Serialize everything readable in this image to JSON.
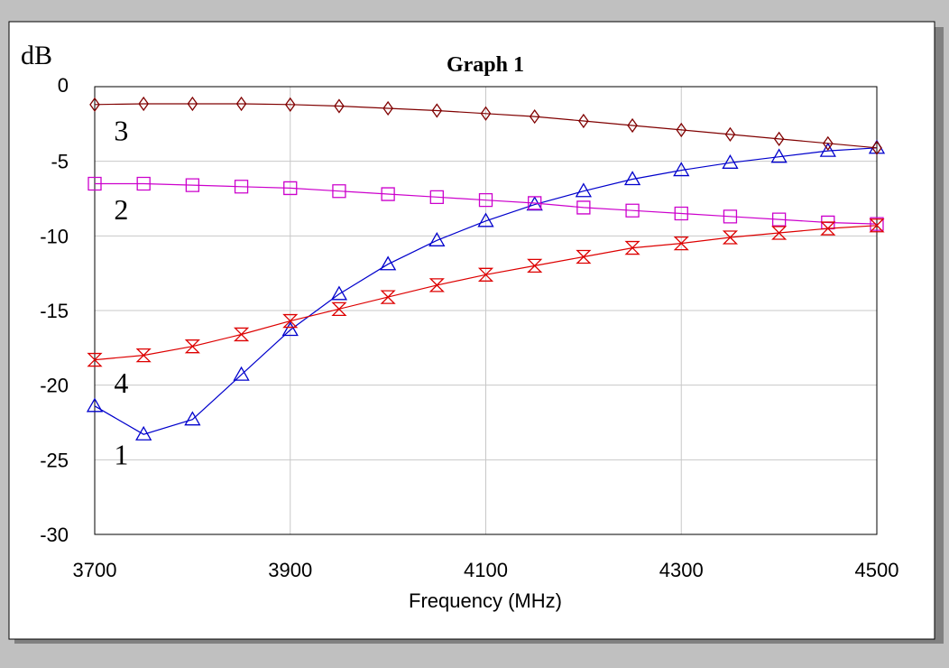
{
  "chart_data": {
    "type": "line",
    "title": "Graph 1",
    "ylabel": "dB",
    "xlabel": "Frequency (MHz)",
    "xlim": [
      3700,
      4500
    ],
    "ylim": [
      -30,
      0
    ],
    "x_ticks": [
      "3700",
      "3900",
      "4100",
      "4300",
      "4500"
    ],
    "y_ticks": [
      "0",
      "-5",
      "-10",
      "-15",
      "-20",
      "-25",
      "-30"
    ],
    "grid": true,
    "x": [
      3700,
      3750,
      3800,
      3850,
      3900,
      3950,
      4000,
      4050,
      4100,
      4150,
      4200,
      4250,
      4300,
      4350,
      4400,
      4450,
      4500
    ],
    "series": [
      {
        "name": "1",
        "color": "#0000cc",
        "marker": "triangle-up",
        "values": [
          -21.4,
          -23.3,
          -22.3,
          -19.3,
          -16.3,
          -13.9,
          -11.9,
          -10.3,
          -9.0,
          -7.9,
          -7.0,
          -6.2,
          -5.6,
          -5.1,
          -4.7,
          -4.3,
          -4.1
        ]
      },
      {
        "name": "2",
        "color": "#cc00cc",
        "marker": "square",
        "values": [
          -6.5,
          -6.5,
          -6.6,
          -6.7,
          -6.8,
          -7.0,
          -7.2,
          -7.4,
          -7.6,
          -7.8,
          -8.1,
          -8.3,
          -8.5,
          -8.7,
          -8.9,
          -9.1,
          -9.2
        ]
      },
      {
        "name": "3",
        "color": "#800000",
        "marker": "diamond",
        "values": [
          -1.2,
          -1.15,
          -1.15,
          -1.15,
          -1.2,
          -1.3,
          -1.45,
          -1.6,
          -1.8,
          -2.0,
          -2.3,
          -2.6,
          -2.9,
          -3.2,
          -3.5,
          -3.8,
          -4.1
        ]
      },
      {
        "name": "4",
        "color": "#dd0000",
        "marker": "hourglass",
        "values": [
          -18.3,
          -18.0,
          -17.4,
          -16.6,
          -15.7,
          -14.9,
          -14.1,
          -13.3,
          -12.6,
          -12.0,
          -11.4,
          -10.8,
          -10.5,
          -10.1,
          -9.8,
          -9.5,
          -9.3
        ]
      }
    ],
    "curve_labels": [
      {
        "text": "3",
        "x": 3705,
        "y": -3.0
      },
      {
        "text": "2",
        "x": 3705,
        "y": -8.3
      },
      {
        "text": "4",
        "x": 3705,
        "y": -19.9
      },
      {
        "text": "1",
        "x": 3705,
        "y": -24.7
      }
    ]
  }
}
